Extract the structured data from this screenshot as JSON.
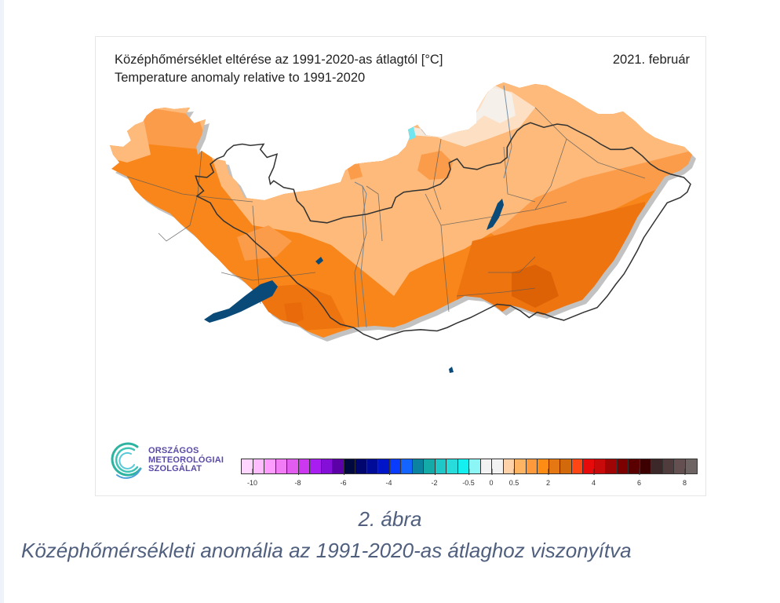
{
  "figure": {
    "title_hu": "Középhőmérséklet eltérése az 1991-2020-as átlagtól [°C]",
    "title_en": "Temperature anomaly relative to 1991-2020",
    "date": "2021. február",
    "logo": {
      "line1": "ORSZÁGOS",
      "line2": "METEOROLÓGIAI",
      "line3": "SZOLGÁLAT",
      "icon": "swirl-logo-icon"
    },
    "colorbar": {
      "swatches": [
        "#ffd6ff",
        "#ffbcff",
        "#ff9cff",
        "#f27cf5",
        "#e35cf0",
        "#cc38f0",
        "#a81ef0",
        "#8410d8",
        "#5c00a8",
        "#000840",
        "#00066e",
        "#000c98",
        "#0014c8",
        "#0a3cff",
        "#1464ff",
        "#0a82a0",
        "#14aaa8",
        "#1ec8c8",
        "#28dcdc",
        "#14f0f0",
        "#8cf5f5",
        "#f2f2f2",
        "#f2f2f2",
        "#ffd2aa",
        "#ffb464",
        "#ff9a3c",
        "#ff8c14",
        "#e67814",
        "#d2690a",
        "#ff4614",
        "#e60a0a",
        "#c80a0a",
        "#a00505",
        "#7d0000",
        "#5a0000",
        "#3c0000",
        "#3c2828",
        "#503c3c",
        "#645050",
        "#6e6464"
      ],
      "ticks": [
        {
          "label": "-10",
          "pos": 1
        },
        {
          "label": "-8",
          "pos": 5
        },
        {
          "label": "-6",
          "pos": 9
        },
        {
          "label": "-4",
          "pos": 13
        },
        {
          "label": "-2",
          "pos": 17
        },
        {
          "label": "-0.5",
          "pos": 20
        },
        {
          "label": "0",
          "pos": 22
        },
        {
          "label": "0.5",
          "pos": 24
        },
        {
          "label": "2",
          "pos": 27
        },
        {
          "label": "4",
          "pos": 31
        },
        {
          "label": "6",
          "pos": 35
        },
        {
          "label": "8",
          "pos": 39
        }
      ]
    },
    "map_colors": {
      "light": "#fdba7a",
      "mid": "#fb9c4a",
      "strong": "#f8861a",
      "deep": "#ee7410",
      "deepest": "#dd6206",
      "pale": "#fde0c4",
      "lake": "#0a4a78",
      "border": "#3a3a3a",
      "shadow": "#9a9a9a"
    }
  },
  "caption": {
    "number": "2. ábra",
    "text": "Középhőmérsékleti anomália az 1991-2020-as átlaghoz viszonyítva"
  }
}
